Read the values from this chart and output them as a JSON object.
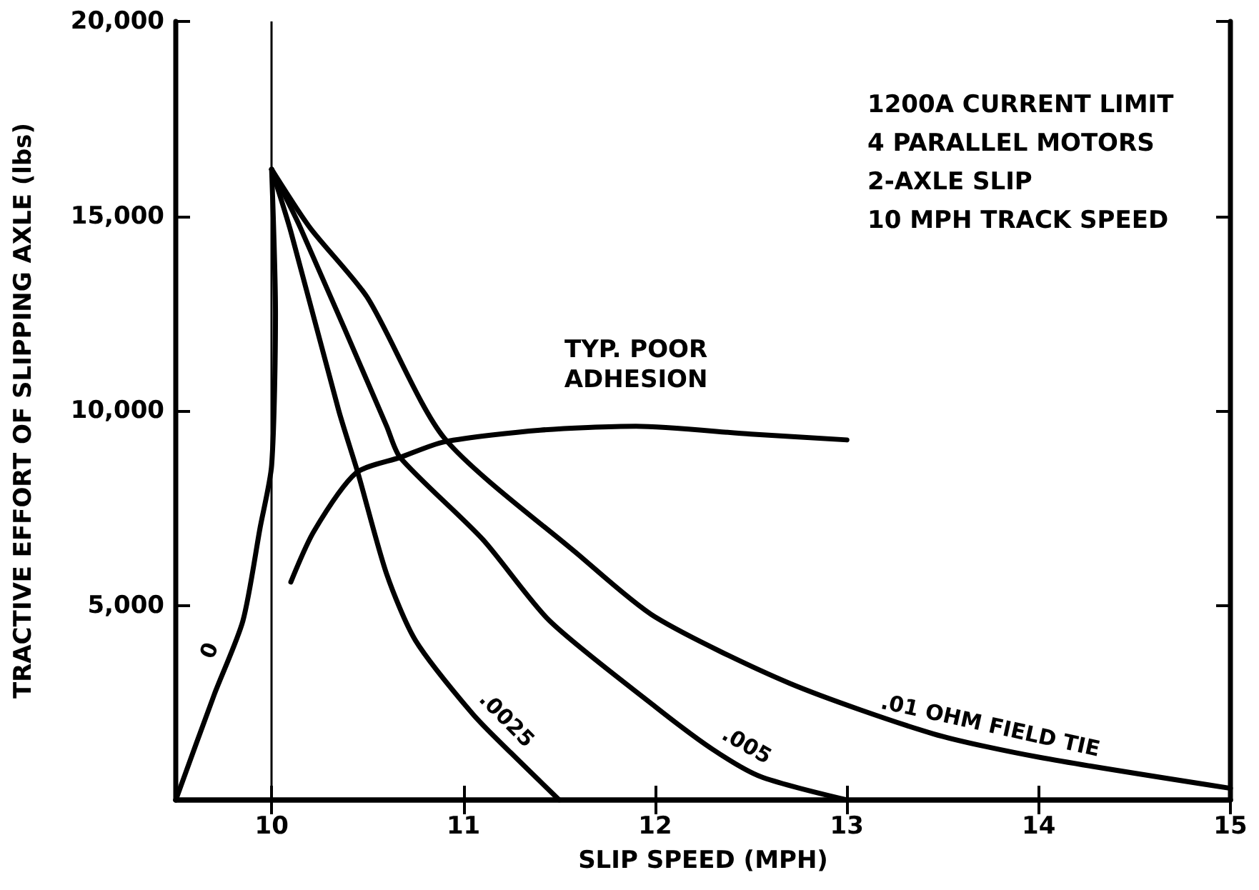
{
  "chart_data": {
    "type": "line",
    "xlabel": "SLIP SPEED (MPH)",
    "ylabel": "TRACTIVE EFFORT OF SLIPPING AXLE (lbs)",
    "annotations": [
      "1200A CURRENT LIMIT",
      "4 PARALLEL MOTORS",
      "2-AXLE SLIP",
      "10 MPH TRACK SPEED"
    ],
    "xlim": [
      9.5,
      15
    ],
    "xticks": [
      10,
      11,
      12,
      13,
      14,
      15
    ],
    "ylim": [
      0,
      20000
    ],
    "yticks": [
      {
        "value": 5000,
        "label": "5,000"
      },
      {
        "value": 10000,
        "label": "10,000"
      },
      {
        "value": 15000,
        "label": "15,000"
      },
      {
        "value": 20000,
        "label": "20,000"
      }
    ],
    "grid": false,
    "legend": false,
    "marker": "none",
    "line_style": "solid",
    "ref_lines": [
      {
        "axis": "x",
        "value": 10,
        "color": "#000000"
      }
    ],
    "series": [
      {
        "name": "0",
        "color": "#000000",
        "x": [
          9.5,
          9.7,
          9.85,
          9.94,
          10,
          10.02,
          10
        ],
        "values": [
          0,
          2700,
          4600,
          7000,
          8600,
          12500,
          16200
        ]
      },
      {
        "name": ".0025",
        "color": "#000000",
        "x": [
          10,
          10.1,
          10.35,
          10.45,
          10.6,
          10.75,
          11.05,
          11.25,
          11.5
        ],
        "values": [
          16200,
          14600,
          10000,
          8400,
          5800,
          4100,
          2200,
          1200,
          0
        ]
      },
      {
        "name": ".005",
        "color": "#000000",
        "x": [
          10,
          10.15,
          10.6,
          10.67,
          11.1,
          11.45,
          12,
          12.3,
          12.55,
          13
        ],
        "values": [
          16200,
          14700,
          9600,
          8800,
          6700,
          4600,
          2400,
          1300,
          600,
          0
        ]
      },
      {
        "name": ".01 OHM FIELD TIE",
        "color": "#000000",
        "x": [
          10,
          10.2,
          10.5,
          10.9,
          11.6,
          12,
          12.7,
          13.45,
          14,
          15
        ],
        "values": [
          16200,
          14700,
          12900,
          9300,
          6300,
          4700,
          3000,
          1700,
          1100,
          300
        ]
      },
      {
        "name": "TYP. POOR ADHESION",
        "color": "#000000",
        "x": [
          10.1,
          10.22,
          10.44,
          10.67,
          10.9,
          11.4,
          11.9,
          12.5,
          13
        ],
        "values": [
          5600,
          6900,
          8400,
          8800,
          9200,
          9500,
          9600,
          9400,
          9250
        ]
      }
    ]
  }
}
